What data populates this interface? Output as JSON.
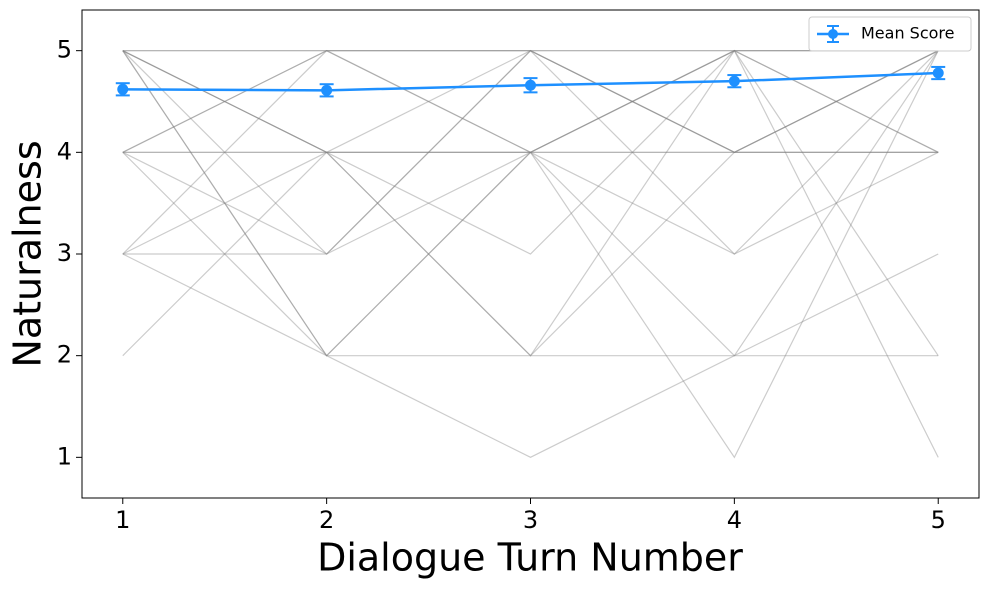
{
  "chart_data": {
    "type": "line",
    "xlabel": "Dialogue Turn Number",
    "ylabel": "Naturalness",
    "x": [
      1,
      2,
      3,
      4,
      5
    ],
    "xlim": [
      0.8,
      5.2
    ],
    "xticks": [
      1,
      2,
      3,
      4,
      5
    ],
    "ylim": [
      0.6,
      5.4
    ],
    "yticks": [
      1,
      2,
      3,
      4,
      5
    ],
    "trajectory_color": "#808080",
    "trajectories": [
      [
        5,
        5,
        5,
        5,
        5
      ],
      [
        5,
        5,
        5,
        5,
        5
      ],
      [
        4,
        4,
        4,
        4,
        4
      ],
      [
        4,
        4,
        4,
        4,
        4
      ],
      [
        5,
        4,
        5,
        4,
        5
      ],
      [
        4,
        5,
        4,
        5,
        4
      ],
      [
        5,
        3,
        5,
        4,
        5
      ],
      [
        4,
        3,
        4,
        5,
        5
      ],
      [
        2,
        4,
        2,
        4,
        5
      ],
      [
        5,
        4,
        2,
        5,
        4
      ],
      [
        3,
        3,
        5,
        3,
        4
      ],
      [
        3,
        2,
        4,
        2,
        3
      ],
      [
        4,
        2,
        2,
        2,
        2
      ],
      [
        5,
        2,
        1,
        2,
        5
      ],
      [
        3,
        4,
        3,
        5,
        1
      ],
      [
        5,
        2,
        4,
        1,
        5
      ],
      [
        3,
        5,
        4,
        3,
        5
      ],
      [
        4,
        5,
        5,
        4,
        4
      ],
      [
        5,
        4,
        4,
        5,
        2
      ]
    ],
    "series": [
      {
        "name": "Mean Score",
        "color": "#1e90ff",
        "values": [
          4.62,
          4.61,
          4.66,
          4.7,
          4.78
        ],
        "errors": [
          0.06,
          0.06,
          0.07,
          0.06,
          0.06
        ]
      }
    ],
    "legend": "upper right"
  }
}
